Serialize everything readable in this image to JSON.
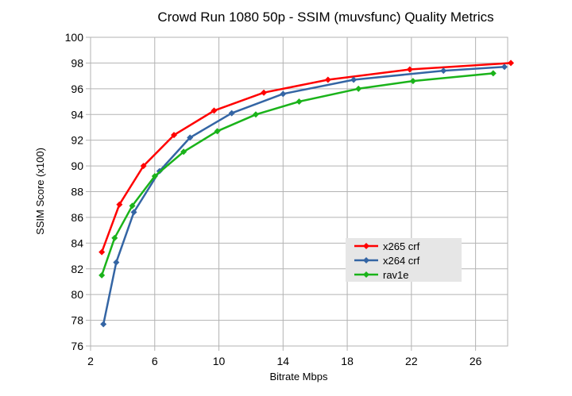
{
  "chart_data": {
    "type": "line",
    "title": "Crowd Run 1080 50p - SSIM (muvsfunc)  Quality Metrics",
    "xlabel": "Bitrate Mbps",
    "ylabel": "SSIM Score (x100)",
    "xlim": [
      2,
      28
    ],
    "ylim": [
      76,
      100
    ],
    "xticks": [
      2,
      6,
      10,
      14,
      18,
      22,
      26
    ],
    "yticks": [
      76,
      78,
      80,
      82,
      84,
      86,
      88,
      90,
      92,
      94,
      96,
      98,
      100
    ],
    "grid": true,
    "legend_position": "center-right",
    "series": [
      {
        "name": "x265 crf",
        "color": "#ff0000",
        "marker": "diamond",
        "points": [
          [
            2.7,
            83.3
          ],
          [
            3.8,
            87.0
          ],
          [
            5.3,
            90.0
          ],
          [
            7.2,
            92.4
          ],
          [
            9.7,
            94.3
          ],
          [
            12.8,
            95.7
          ],
          [
            16.8,
            96.7
          ],
          [
            21.9,
            97.5
          ],
          [
            28.2,
            98.0
          ]
        ]
      },
      {
        "name": "x264 crf",
        "color": "#3465a4",
        "marker": "diamond",
        "points": [
          [
            2.8,
            77.7
          ],
          [
            3.6,
            82.5
          ],
          [
            4.7,
            86.4
          ],
          [
            6.3,
            89.6
          ],
          [
            8.2,
            92.2
          ],
          [
            10.8,
            94.1
          ],
          [
            14.0,
            95.6
          ],
          [
            18.4,
            96.7
          ],
          [
            24.0,
            97.4
          ],
          [
            27.8,
            97.7
          ]
        ]
      },
      {
        "name": "rav1e",
        "color": "#1ab31a",
        "marker": "diamond",
        "points": [
          [
            2.7,
            81.5
          ],
          [
            3.5,
            84.4
          ],
          [
            4.6,
            86.9
          ],
          [
            6.0,
            89.2
          ],
          [
            7.8,
            91.1
          ],
          [
            9.9,
            92.7
          ],
          [
            12.3,
            94.0
          ],
          [
            15.0,
            95.0
          ],
          [
            18.7,
            96.0
          ],
          [
            22.1,
            96.6
          ],
          [
            27.1,
            97.2
          ]
        ]
      }
    ]
  }
}
